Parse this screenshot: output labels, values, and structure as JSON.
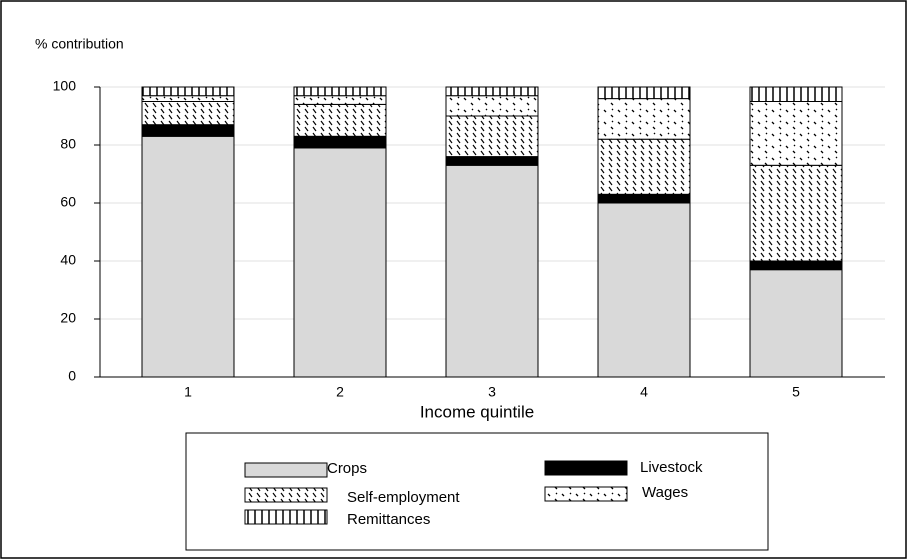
{
  "chart_data": {
    "type": "bar",
    "stacked": true,
    "ylabel": "% contribution",
    "xlabel": "Income quintile",
    "categories": [
      "1",
      "2",
      "3",
      "4",
      "5"
    ],
    "series": [
      {
        "name": "Crops",
        "color": "#d9d9d9",
        "pattern": "solid",
        "values": [
          83,
          79,
          73,
          60,
          37
        ]
      },
      {
        "name": "Livestock",
        "color": "#000000",
        "pattern": "solid",
        "values": [
          4,
          4,
          3,
          3,
          3
        ]
      },
      {
        "name": "Self-employment",
        "color": "#000000",
        "pattern": "hatch",
        "values": [
          8,
          11,
          14,
          19,
          33
        ]
      },
      {
        "name": "Wages",
        "color": "#000000",
        "pattern": "dots",
        "values": [
          2,
          3,
          7,
          14,
          22
        ]
      },
      {
        "name": "Remittances",
        "color": "#000000",
        "pattern": "bars",
        "values": [
          3,
          3,
          3,
          4,
          5
        ]
      }
    ],
    "ylim": [
      0,
      100
    ],
    "yticks": [
      0,
      20,
      40,
      60,
      80,
      100
    ],
    "grid": true
  }
}
